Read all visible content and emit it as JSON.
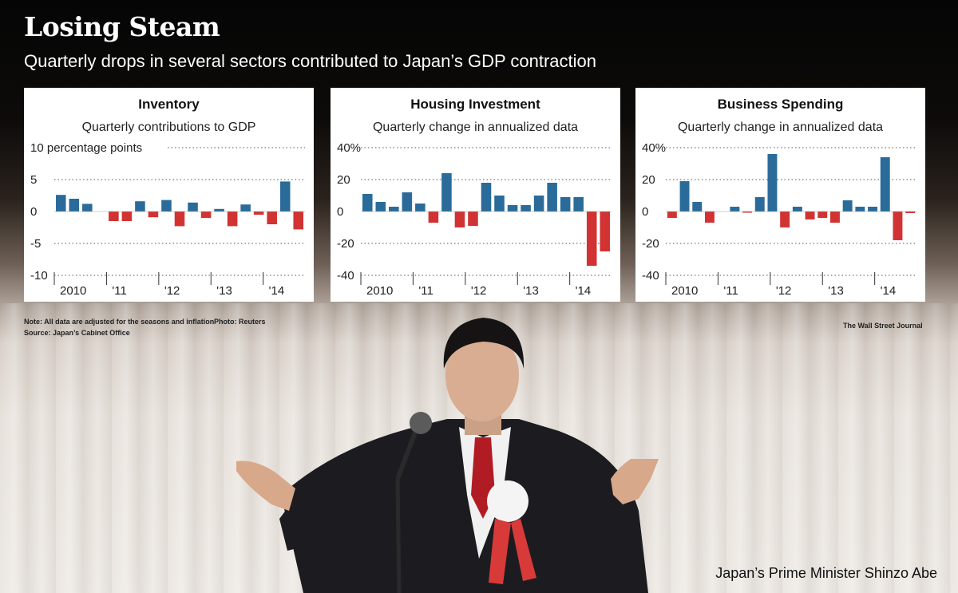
{
  "header": {
    "title": "Losing Steam",
    "subtitle": "Quarterly drops in several sectors contributed to Japan’s GDP contraction"
  },
  "colors": {
    "positive": "#2a6b9a",
    "negative": "#d13333",
    "background": "#000000"
  },
  "chart_data": [
    {
      "type": "bar",
      "title": "Inventory",
      "subtitle": "Quarterly contributions to GDP",
      "unit_label": "10 percentage points",
      "ylim": [
        -10,
        10
      ],
      "yticks": [
        10,
        5,
        0,
        -5,
        -10
      ],
      "ytick_labels": [
        "10 percentage points",
        "5",
        "0",
        "-5",
        "-10"
      ],
      "year_labels": [
        "2010",
        "'11",
        "'12",
        "'13",
        "'14"
      ],
      "values": [
        2.6,
        2.0,
        1.2,
        null,
        -1.5,
        -1.5,
        1.6,
        -0.9,
        1.8,
        -2.3,
        1.4,
        -1.0,
        0.4,
        -2.3,
        1.1,
        -0.5,
        -2.0,
        4.7,
        -2.8
      ],
      "xlabel": "",
      "ylabel": ""
    },
    {
      "type": "bar",
      "title": "Housing Investment",
      "subtitle": "Quarterly change in annualized data",
      "ylim": [
        -40,
        40
      ],
      "yticks": [
        40,
        20,
        0,
        -20,
        -40
      ],
      "ytick_labels": [
        "40%",
        "20",
        "0",
        "-20",
        "-40"
      ],
      "year_labels": [
        "2010",
        "'11",
        "'12",
        "'13",
        "'14"
      ],
      "values": [
        11,
        6,
        3,
        12,
        5,
        -7,
        24,
        -10,
        -9,
        18,
        10,
        4,
        4,
        10,
        18,
        9,
        9,
        -34,
        -25
      ],
      "xlabel": "",
      "ylabel": ""
    },
    {
      "type": "bar",
      "title": "Business Spending",
      "subtitle": "Quarterly change in annualized data",
      "ylim": [
        -40,
        40
      ],
      "yticks": [
        40,
        20,
        0,
        -20,
        -40
      ],
      "ytick_labels": [
        "40%",
        "20",
        "0",
        "-20",
        "-40"
      ],
      "year_labels": [
        "2010",
        "'11",
        "'12",
        "'13",
        "'14"
      ],
      "values": [
        -4,
        19,
        6,
        -7,
        null,
        3,
        -0.5,
        9,
        36,
        -10,
        3,
        -5,
        -4,
        -7,
        7,
        3,
        3,
        34,
        -18,
        -1
      ],
      "xlabel": "",
      "ylabel": ""
    }
  ],
  "notes": {
    "note": "Note: All data are adjusted for the seasons and inflation",
    "source": "Source: Japan’s Cabinet Office",
    "photo_credit": "Photo: Reuters",
    "publisher": "The Wall Street Journal"
  },
  "photo": {
    "caption": "Japan’s Prime Minister Shinzo Abe"
  }
}
